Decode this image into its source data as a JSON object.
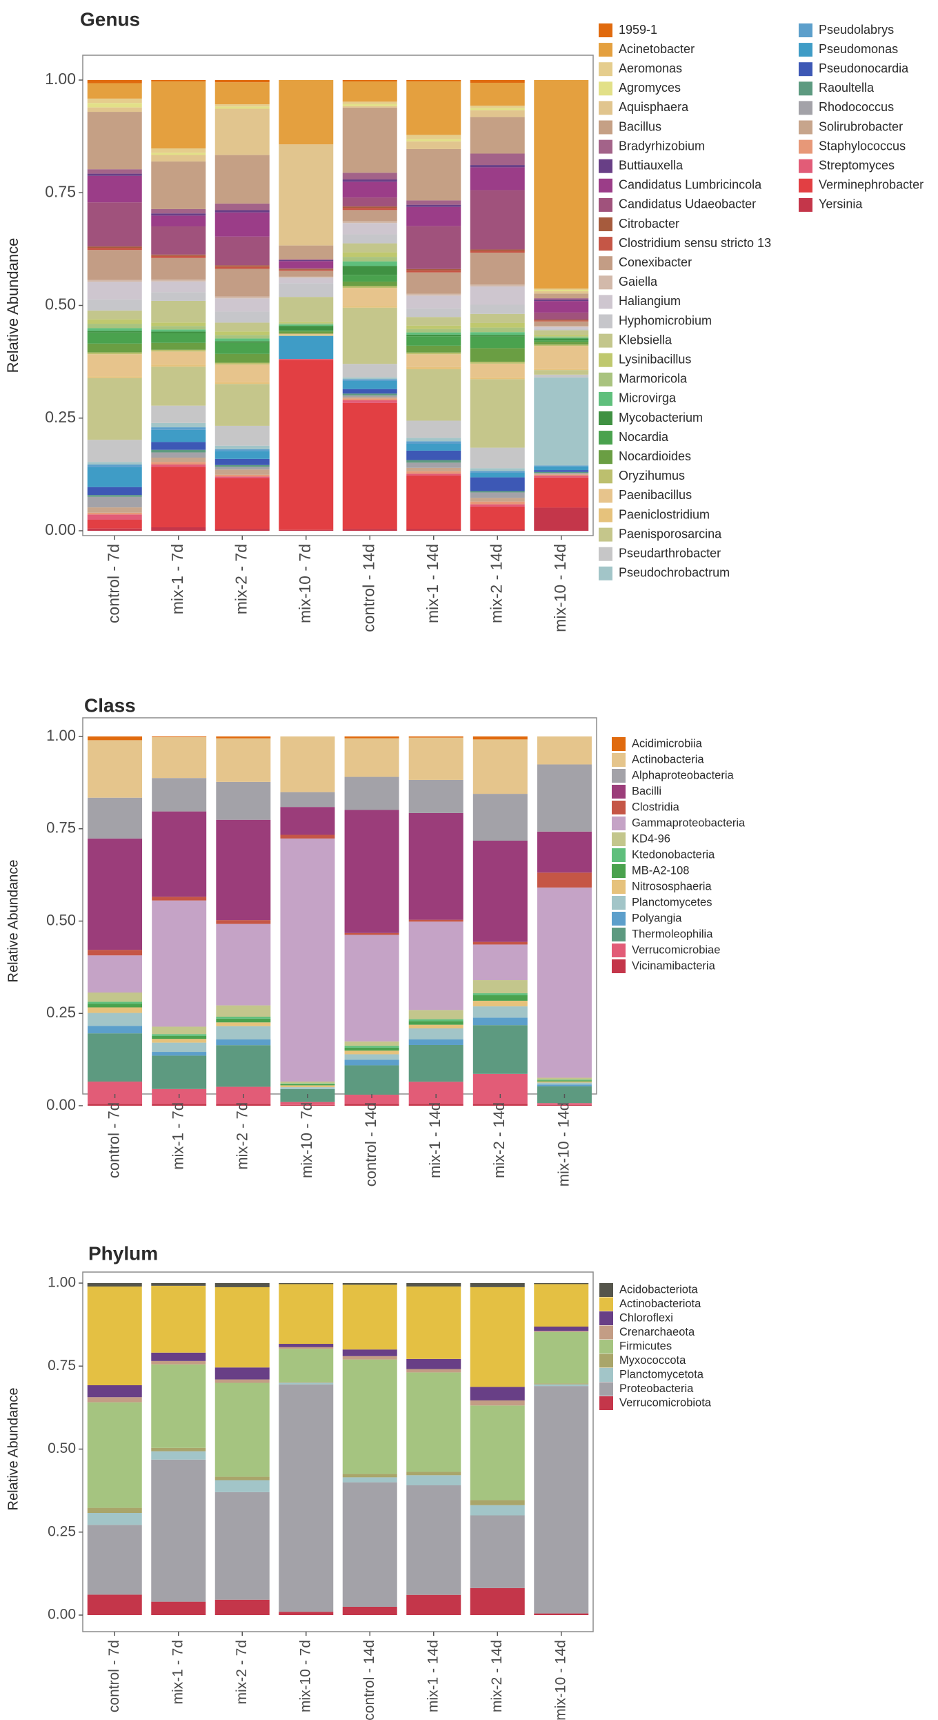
{
  "chart_data": [
    {
      "type": "bar",
      "stacked": true,
      "title": "Genus",
      "xlabel": "",
      "ylabel": "Relative Abundance",
      "ylim": [
        0,
        1
      ],
      "yticks": [
        "0.00",
        "0.25",
        "0.50",
        "0.75",
        "1.00"
      ],
      "categories": [
        "control - 7d",
        "mix-1 - 7d",
        "mix-2 - 7d",
        "mix-10 - 7d",
        "control - 14d",
        "mix-1 - 14d",
        "mix-2 - 14d",
        "mix-10 - 14d"
      ],
      "legend_position": "right",
      "legend_columns": 2,
      "series": [
        {
          "name": "Yersinia",
          "color": "#c4364a",
          "values": [
            0.005,
            0.008,
            0.004,
            0.002,
            0.004,
            0.004,
            0.003,
            0.05
          ]
        },
        {
          "name": "Verminephrobacter",
          "color": "#e23f43",
          "values": [
            0.02,
            0.14,
            0.115,
            0.37,
            0.28,
            0.125,
            0.05,
            0.065
          ]
        },
        {
          "name": "Streptomyces",
          "color": "#e25c77",
          "values": [
            0.012,
            0.005,
            0.004,
            0.002,
            0.006,
            0.004,
            0.005,
            0.004
          ]
        },
        {
          "name": "Staphylococcus",
          "color": "#e79878",
          "values": [
            0.004,
            0.006,
            0.004,
            0.0,
            0.004,
            0.006,
            0.006,
            0.002
          ]
        },
        {
          "name": "Solirubrobacter",
          "color": "#c7a58c",
          "values": [
            0.012,
            0.01,
            0.012,
            0.0,
            0.003,
            0.008,
            0.008,
            0.002
          ]
        },
        {
          "name": "Rhodococcus",
          "color": "#a3a2a8",
          "values": [
            0.024,
            0.012,
            0.006,
            0.0,
            0.004,
            0.012,
            0.012,
            0.002
          ]
        },
        {
          "name": "Raoultella",
          "color": "#5d9a80",
          "values": [
            0.004,
            0.006,
            0.004,
            0.0,
            0.004,
            0.006,
            0.003,
            0.002
          ]
        },
        {
          "name": "Pseudonocardia",
          "color": "#3d58b5",
          "values": [
            0.018,
            0.018,
            0.014,
            0.0,
            0.01,
            0.022,
            0.03,
            0.004
          ]
        },
        {
          "name": "Pseudomonas",
          "color": "#3f9cc6",
          "values": [
            0.045,
            0.028,
            0.018,
            0.05,
            0.018,
            0.016,
            0.01,
            0.008
          ]
        },
        {
          "name": "Pseudolabrys",
          "color": "#5c9fcb",
          "values": [
            0.006,
            0.006,
            0.004,
            0.0,
            0.004,
            0.006,
            0.004,
            0.002
          ]
        },
        {
          "name": "Pseudochrobactrum",
          "color": "#a2c5c8",
          "values": [
            0.006,
            0.01,
            0.008,
            0.0,
            0.004,
            0.008,
            0.006,
            0.19
          ]
        },
        {
          "name": "Pseudarthrobacter",
          "color": "#c6c6c7",
          "values": [
            0.05,
            0.04,
            0.045,
            0.0,
            0.03,
            0.04,
            0.045,
            0.006
          ]
        },
        {
          "name": "Paenisporosarcina",
          "color": "#c5c68b",
          "values": [
            0.14,
            0.09,
            0.095,
            0.002,
            0.125,
            0.12,
            0.15,
            0.01
          ]
        },
        {
          "name": "Paeniclostridium",
          "color": "#e6c27c",
          "values": [
            0.004,
            0.005,
            0.004,
            0.0,
            0.004,
            0.005,
            0.004,
            0.002
          ]
        },
        {
          "name": "Paenibacillus",
          "color": "#e7c48c",
          "values": [
            0.05,
            0.03,
            0.04,
            0.003,
            0.04,
            0.03,
            0.03,
            0.05
          ]
        },
        {
          "name": "Oryzihumus",
          "color": "#bcbf6e",
          "values": [
            0.004,
            0.004,
            0.004,
            0.0,
            0.004,
            0.004,
            0.004,
            0.003
          ]
        },
        {
          "name": "Nocardioides",
          "color": "#6a9e43",
          "values": [
            0.02,
            0.016,
            0.02,
            0.005,
            0.01,
            0.016,
            0.03,
            0.006
          ]
        },
        {
          "name": "Nocardia",
          "color": "#4aa24e",
          "values": [
            0.025,
            0.022,
            0.025,
            0.002,
            0.015,
            0.022,
            0.025,
            0.003
          ]
        },
        {
          "name": "Mycobacterium",
          "color": "#3f9142",
          "values": [
            0.004,
            0.004,
            0.004,
            0.01,
            0.02,
            0.004,
            0.004,
            0.004
          ]
        },
        {
          "name": "Microvirga",
          "color": "#5fbf7c",
          "values": [
            0.006,
            0.005,
            0.006,
            0.003,
            0.01,
            0.005,
            0.006,
            0.002
          ]
        },
        {
          "name": "Marmoricola",
          "color": "#a9c37f",
          "values": [
            0.01,
            0.008,
            0.008,
            0.003,
            0.01,
            0.008,
            0.01,
            0.003
          ]
        },
        {
          "name": "Lysinibacillus",
          "color": "#bfc86e",
          "values": [
            0.01,
            0.008,
            0.008,
            0.002,
            0.01,
            0.008,
            0.01,
            0.003
          ]
        },
        {
          "name": "Klebsiella",
          "color": "#c3c68c",
          "values": [
            0.02,
            0.05,
            0.02,
            0.055,
            0.02,
            0.02,
            0.02,
            0.01
          ]
        },
        {
          "name": "Hyphomicrobium",
          "color": "#c6c6ca",
          "values": [
            0.025,
            0.02,
            0.025,
            0.03,
            0.02,
            0.02,
            0.02,
            0.003
          ]
        },
        {
          "name": "Haliangium",
          "color": "#cec6cf",
          "values": [
            0.04,
            0.025,
            0.03,
            0.012,
            0.025,
            0.03,
            0.04,
            0.004
          ]
        },
        {
          "name": "Gaiella",
          "color": "#d2b9aa",
          "values": [
            0.004,
            0.004,
            0.004,
            0.002,
            0.004,
            0.004,
            0.004,
            0.002
          ]
        },
        {
          "name": "Conexibacter",
          "color": "#c39d85",
          "values": [
            0.068,
            0.05,
            0.063,
            0.013,
            0.025,
            0.05,
            0.07,
            0.01
          ]
        },
        {
          "name": "Clostridium sensu stricto 13",
          "color": "#c55646",
          "values": [
            0.005,
            0.005,
            0.005,
            0.002,
            0.005,
            0.005,
            0.004,
            0.002
          ]
        },
        {
          "name": "Citrobacter",
          "color": "#a65b3d",
          "values": [
            0.003,
            0.003,
            0.003,
            0.002,
            0.003,
            0.003,
            0.003,
            0.002
          ]
        },
        {
          "name": "Candidatus Udaeobacter",
          "color": "#a0527c",
          "values": [
            0.1,
            0.065,
            0.065,
            0.002,
            0.02,
            0.1,
            0.13,
            0.015
          ]
        },
        {
          "name": "Candidatus Lumbricincola",
          "color": "#9b3d88",
          "values": [
            0.06,
            0.025,
            0.055,
            0.015,
            0.035,
            0.045,
            0.05,
            0.025
          ]
        },
        {
          "name": "Buttiauxella",
          "color": "#683f86",
          "values": [
            0.005,
            0.005,
            0.005,
            0.002,
            0.005,
            0.005,
            0.005,
            0.003
          ]
        },
        {
          "name": "Bradyrhizobium",
          "color": "#a36389",
          "values": [
            0.01,
            0.01,
            0.015,
            0.002,
            0.015,
            0.01,
            0.025,
            0.003
          ]
        },
        {
          "name": "Bacillus",
          "color": "#c5a085",
          "values": [
            0.13,
            0.11,
            0.11,
            0.03,
            0.145,
            0.12,
            0.08,
            0.01
          ]
        },
        {
          "name": "Aquisphaera",
          "color": "#e1c58e",
          "values": [
            0.01,
            0.015,
            0.105,
            0.22,
            0.003,
            0.018,
            0.015,
            0.005
          ]
        },
        {
          "name": "Agromyces",
          "color": "#e2e088",
          "values": [
            0.01,
            0.005,
            0.005,
            0.0,
            0.005,
            0.005,
            0.005,
            0.003
          ]
        },
        {
          "name": "Aeromonas",
          "color": "#e5cd8d",
          "values": [
            0.01,
            0.01,
            0.005,
            0.0,
            0.005,
            0.01,
            0.005,
            0.003
          ]
        },
        {
          "name": "Acinetobacter",
          "color": "#e4a03f",
          "values": [
            0.035,
            0.155,
            0.05,
            0.14,
            0.045,
            0.125,
            0.05,
            0.45
          ]
        },
        {
          "name": "1959-1",
          "color": "#e06a0e",
          "values": [
            0.007,
            0.003,
            0.005,
            0.0,
            0.003,
            0.003,
            0.006,
            0.0
          ]
        }
      ]
    },
    {
      "type": "bar",
      "stacked": true,
      "title": "Class",
      "xlabel": "",
      "ylabel": "Relative Abundance",
      "ylim": [
        0,
        1
      ],
      "yticks": [
        "0.00",
        "0.25",
        "0.50",
        "0.75",
        "1.00"
      ],
      "categories": [
        "control - 7d",
        "mix-1 - 7d",
        "mix-2 - 7d",
        "mix-10 - 7d",
        "control - 14d",
        "mix-1 - 14d",
        "mix-2 - 14d",
        "mix-10 - 14d"
      ],
      "legend_position": "right",
      "legend_columns": 1,
      "series": [
        {
          "name": "Vicinamibacteria",
          "color": "#c4364a",
          "values": [
            0.005,
            0.005,
            0.005,
            0.002,
            0.005,
            0.005,
            0.005,
            0.002
          ]
        },
        {
          "name": "Verrucomicrobiae",
          "color": "#e25c77",
          "values": [
            0.06,
            0.04,
            0.045,
            0.008,
            0.025,
            0.06,
            0.08,
            0.005
          ]
        },
        {
          "name": "Thermoleophilia",
          "color": "#5d9a80",
          "values": [
            0.13,
            0.09,
            0.11,
            0.035,
            0.08,
            0.1,
            0.13,
            0.045
          ]
        },
        {
          "name": "Polyangia",
          "color": "#5c9fcb",
          "values": [
            0.02,
            0.01,
            0.015,
            0.0,
            0.015,
            0.015,
            0.02,
            0.005
          ]
        },
        {
          "name": "Planctomycetes",
          "color": "#a2c5c8",
          "values": [
            0.035,
            0.025,
            0.035,
            0.005,
            0.015,
            0.03,
            0.03,
            0.005
          ]
        },
        {
          "name": "Nitrososphaeria",
          "color": "#e6c27c",
          "values": [
            0.015,
            0.01,
            0.01,
            0.005,
            0.01,
            0.01,
            0.015,
            0.003
          ]
        },
        {
          "name": "MB-A2-108",
          "color": "#4aa24e",
          "values": [
            0.01,
            0.008,
            0.01,
            0.003,
            0.008,
            0.01,
            0.015,
            0.003
          ]
        },
        {
          "name": "Ktedonobacteria",
          "color": "#5fbf7c",
          "values": [
            0.005,
            0.005,
            0.005,
            0.002,
            0.005,
            0.005,
            0.005,
            0.002
          ]
        },
        {
          "name": "KD4-96",
          "color": "#c3c68c",
          "values": [
            0.025,
            0.02,
            0.03,
            0.005,
            0.012,
            0.025,
            0.035,
            0.005
          ]
        },
        {
          "name": "Gammaproteobacteria",
          "color": "#c5a3c6",
          "values": [
            0.1,
            0.34,
            0.215,
            0.655,
            0.29,
            0.24,
            0.095,
            0.51
          ]
        },
        {
          "name": "Clostridia",
          "color": "#c55646",
          "values": [
            0.015,
            0.01,
            0.01,
            0.01,
            0.005,
            0.005,
            0.007,
            0.04
          ]
        },
        {
          "name": "Bacilli",
          "color": "#9b3d7a",
          "values": [
            0.3,
            0.23,
            0.265,
            0.075,
            0.335,
            0.29,
            0.27,
            0.11
          ]
        },
        {
          "name": "Alphaproteobacteria",
          "color": "#a3a2a8",
          "values": [
            0.11,
            0.09,
            0.1,
            0.04,
            0.09,
            0.09,
            0.125,
            0.18
          ]
        },
        {
          "name": "Actinobacteria",
          "color": "#e5c58c",
          "values": [
            0.155,
            0.11,
            0.115,
            0.15,
            0.105,
            0.115,
            0.145,
            0.075
          ]
        },
        {
          "name": "Acidimicrobiia",
          "color": "#e06a0e",
          "values": [
            0.01,
            0.002,
            0.005,
            0.0,
            0.005,
            0.003,
            0.008,
            0.0
          ]
        }
      ]
    },
    {
      "type": "bar",
      "stacked": true,
      "title": "Phylum",
      "xlabel": "",
      "ylabel": "Relative Abundance",
      "ylim": [
        0,
        1
      ],
      "yticks": [
        "0.00",
        "0.25",
        "0.50",
        "0.75",
        "1.00"
      ],
      "categories": [
        "control - 7d",
        "mix-1 - 7d",
        "mix-2 - 7d",
        "mix-10 - 7d",
        "control - 14d",
        "mix-1 - 14d",
        "mix-2 - 14d",
        "mix-10 - 14d"
      ],
      "legend_position": "right",
      "legend_columns": 1,
      "series": [
        {
          "name": "Verrucomicrobiota",
          "color": "#c4364a",
          "values": [
            0.06,
            0.04,
            0.045,
            0.01,
            0.025,
            0.06,
            0.08,
            0.005
          ]
        },
        {
          "name": "Proteobacteria",
          "color": "#a3a2a8",
          "values": [
            0.205,
            0.425,
            0.315,
            0.685,
            0.375,
            0.325,
            0.215,
            0.685
          ]
        },
        {
          "name": "Planctomycetota",
          "color": "#a2c5c8",
          "values": [
            0.035,
            0.025,
            0.035,
            0.005,
            0.015,
            0.03,
            0.03,
            0.005
          ]
        },
        {
          "name": "Myxococcota",
          "color": "#a9a56a",
          "values": [
            0.015,
            0.01,
            0.01,
            0.002,
            0.01,
            0.01,
            0.015,
            0.003
          ]
        },
        {
          "name": "Firmicutes",
          "color": "#a5c480",
          "values": [
            0.31,
            0.25,
            0.275,
            0.1,
            0.345,
            0.295,
            0.28,
            0.155
          ]
        },
        {
          "name": "Crenarchaeota",
          "color": "#c39d85",
          "values": [
            0.015,
            0.01,
            0.01,
            0.005,
            0.01,
            0.01,
            0.015,
            0.003
          ]
        },
        {
          "name": "Chloroflexi",
          "color": "#683f86",
          "values": [
            0.035,
            0.025,
            0.035,
            0.01,
            0.02,
            0.03,
            0.04,
            0.013
          ]
        },
        {
          "name": "Actinobacteriota",
          "color": "#e4c043",
          "values": [
            0.29,
            0.2,
            0.235,
            0.18,
            0.195,
            0.215,
            0.295,
            0.128
          ]
        },
        {
          "name": "Acidobacteriota",
          "color": "#55554b",
          "values": [
            0.01,
            0.008,
            0.012,
            0.003,
            0.005,
            0.01,
            0.012,
            0.003
          ]
        }
      ]
    }
  ]
}
